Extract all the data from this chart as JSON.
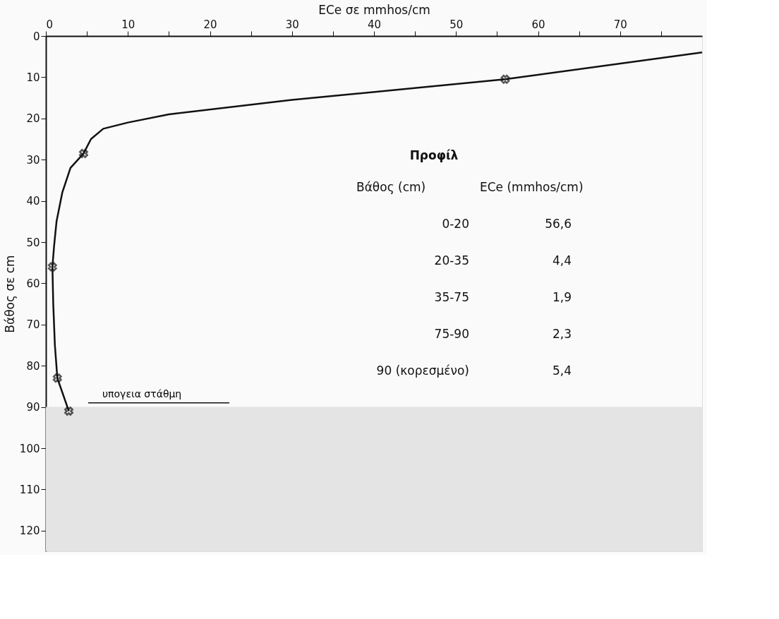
{
  "chart_data": {
    "type": "line",
    "xlabel": "ECe σε mmhos/cm",
    "ylabel": "Βάθος σε cm",
    "xlim": [
      0,
      80
    ],
    "ylim": [
      125,
      0
    ],
    "xticks": [
      0,
      {
        "value": 5,
        "label": null
      },
      10,
      {
        "value": 15,
        "label": null
      },
      20,
      {
        "value": 25,
        "label": null
      },
      30,
      {
        "value": 35,
        "label": null
      },
      40,
      {
        "value": 45,
        "label": null
      },
      50,
      {
        "value": 55,
        "label": null
      },
      60,
      {
        "value": 65,
        "label": null
      },
      70,
      {
        "value": 75,
        "label": null
      }
    ],
    "yticks": [
      0,
      10,
      20,
      30,
      40,
      50,
      60,
      70,
      80,
      90,
      100,
      110,
      120
    ],
    "grid": false,
    "series": [
      {
        "color": "#111111",
        "line_style": "solid",
        "marker": "none",
        "x": [
          80,
          56,
          30,
          15,
          10,
          7,
          5.5,
          4.6,
          3,
          2,
          1.3,
          1,
          0.8,
          0.9,
          1.1,
          1.4,
          2.8
        ],
        "values": [
          4,
          10.5,
          15.5,
          19,
          21,
          22.5,
          25,
          28.5,
          32,
          38,
          45,
          51,
          56,
          65,
          75,
          83,
          91
        ]
      },
      {
        "type": "scatter",
        "color": "#111111",
        "marker": "cross",
        "x": [
          56,
          4.6,
          0.8,
          1.4,
          2.8
        ],
        "values": [
          10.5,
          28.5,
          56,
          83,
          91
        ]
      }
    ],
    "ref_lines": [
      {
        "axis": "y",
        "value": 89,
        "label": "υπογεια στάθμη",
        "color": "#111111"
      }
    ],
    "bands": [
      {
        "axis": "y",
        "from": 90,
        "to": 125,
        "color": "#e4e4e4"
      }
    ],
    "annotations": [
      "Προφίλ",
      "Βάθος (cm)",
      "ECe (mmhos/cm)",
      "0-20",
      "56,6",
      "20-35",
      "4,4",
      "35-75",
      "1,9",
      "75-90",
      "2,3",
      "90 (κορεσμένο)",
      "5,4"
    ]
  }
}
